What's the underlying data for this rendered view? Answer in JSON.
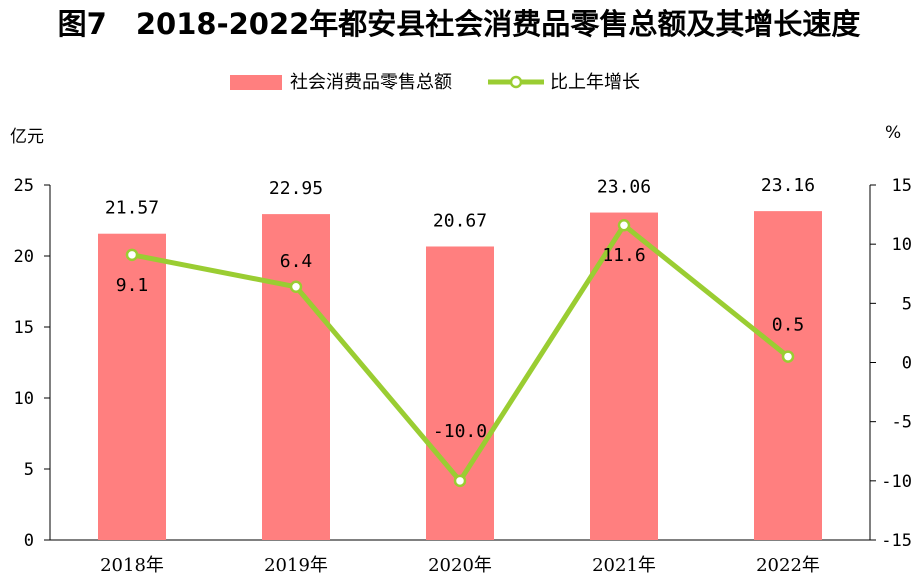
{
  "chart_data": {
    "type": "bar+line",
    "title": "图7　2018-2022年都安县社会消费品零售总额及其增长速度",
    "categories": [
      "2018年",
      "2019年",
      "2020年",
      "2021年",
      "2022年"
    ],
    "bars": {
      "name": "社会消费品零售总额",
      "values": [
        21.57,
        22.95,
        20.67,
        23.06,
        23.16
      ],
      "labels": [
        "21.57",
        "22.95",
        "20.67",
        "23.06",
        "23.16"
      ],
      "color": "#ff7f7f"
    },
    "line": {
      "name": "比上年增长",
      "values": [
        9.1,
        6.4,
        -10.0,
        11.6,
        0.5
      ],
      "labels": [
        "9.1",
        "6.4",
        "-10.0",
        "11.6",
        "0.5"
      ],
      "color": "#9acd32"
    },
    "y_left": {
      "unit": "亿元",
      "range": [
        0,
        25
      ],
      "ticks": [
        "0",
        "5",
        "10",
        "15",
        "20",
        "25"
      ]
    },
    "y_right": {
      "unit": "%",
      "range": [
        -15,
        15
      ],
      "ticks": [
        "-15",
        "-10",
        "-5",
        "0",
        "5",
        "10",
        "15"
      ]
    },
    "legend_position": "top-center",
    "grid": false
  }
}
